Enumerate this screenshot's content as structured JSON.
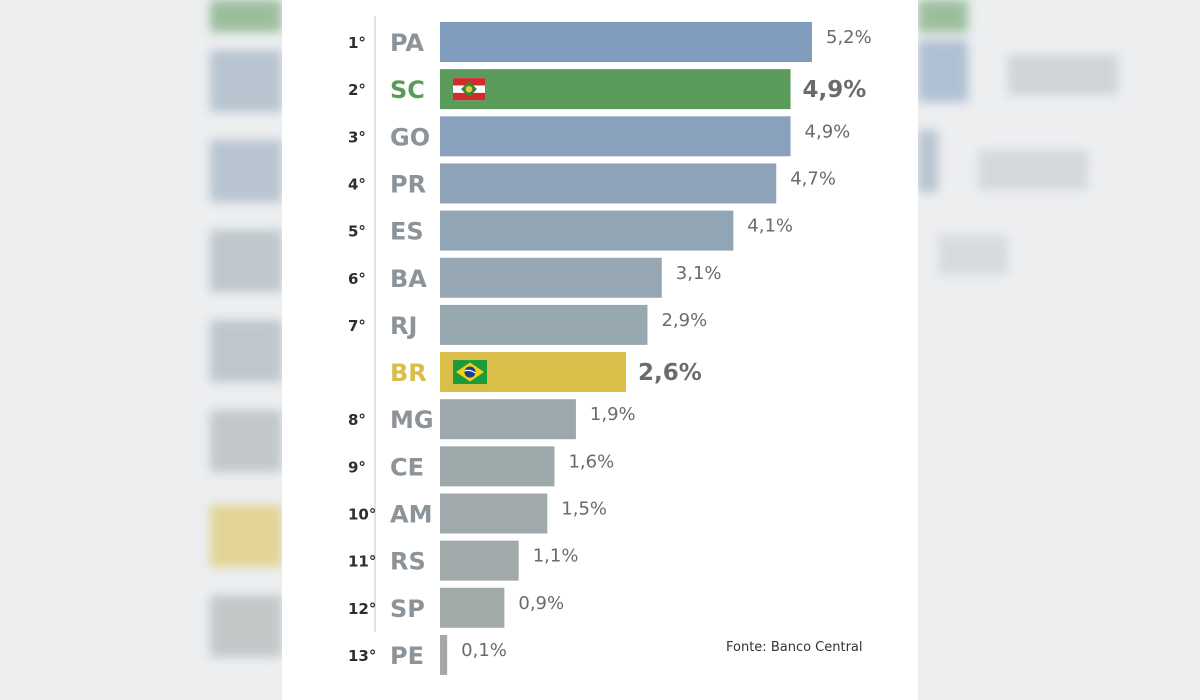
{
  "chart_data": {
    "type": "bar",
    "orientation": "horizontal",
    "categories": [
      "PA",
      "SC",
      "GO",
      "PR",
      "ES",
      "BA",
      "RJ",
      "BR",
      "MG",
      "CE",
      "AM",
      "RS",
      "SP",
      "PE"
    ],
    "ranks": [
      "1°",
      "2°",
      "3°",
      "4°",
      "5°",
      "6°",
      "7°",
      "",
      "8°",
      "9°",
      "10°",
      "11°",
      "12°",
      "13°"
    ],
    "values": [
      5.2,
      4.9,
      4.9,
      4.7,
      4.1,
      3.1,
      2.9,
      2.6,
      1.9,
      1.6,
      1.5,
      1.1,
      0.9,
      0.1
    ],
    "value_labels": [
      "5,2%",
      "4,9%",
      "4,9%",
      "4,7%",
      "4,1%",
      "3,1%",
      "2,9%",
      "2,6%",
      "1,9%",
      "1,6%",
      "1,5%",
      "1,1%",
      "0,9%",
      "0,1%"
    ],
    "highlight": {
      "SC": "#5a9a5a",
      "BR": "#d9bf4a"
    },
    "bar_colors": [
      "#7f9cbd",
      "#5a9a5a",
      "#89a1bc",
      "#8ea3b7",
      "#92a5b5",
      "#96a7b3",
      "#98a8b1",
      "#d9bf4a",
      "#9ca8ae",
      "#9ea9ac",
      "#a0a9ab",
      "#a1a9aa",
      "#a2a9a9",
      "#a4a8a8"
    ],
    "label_colors": {
      "default": "#8c949a",
      "SC": "#5a9a5a",
      "BR": "#d9bf4a"
    },
    "flag_icons": {
      "SC": "santa-catarina-flag-icon",
      "BR": "brazil-flag-icon"
    },
    "xlim": [
      0,
      5.2
    ]
  },
  "source": "Fonte: Banco Central"
}
